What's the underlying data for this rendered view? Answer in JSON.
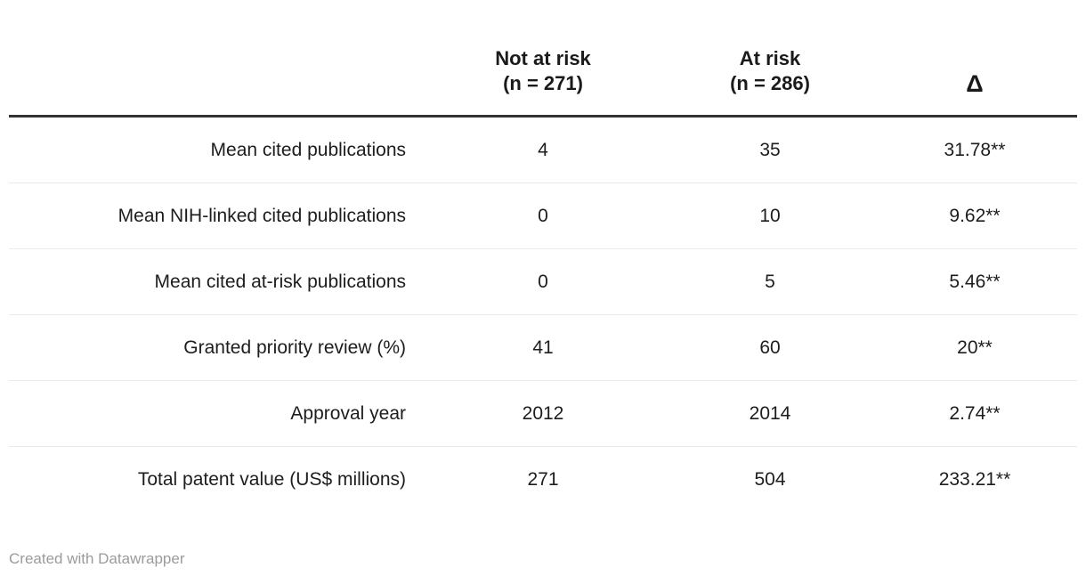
{
  "chart_data": {
    "type": "table",
    "columns": [
      {
        "label": "",
        "sublabel": ""
      },
      {
        "label": "Not at risk",
        "sublabel": "(n = 271)"
      },
      {
        "label": "At risk",
        "sublabel": "(n = 286)"
      },
      {
        "label": "Δ",
        "sublabel": ""
      }
    ],
    "rows": [
      [
        "Mean cited publications",
        "4",
        "35",
        "31.78**"
      ],
      [
        "Mean NIH-linked cited publications",
        "0",
        "10",
        "9.62**"
      ],
      [
        "Mean cited at-risk publications",
        "0",
        "5",
        "5.46**"
      ],
      [
        "Granted priority review (%)",
        "41",
        "60",
        "20**"
      ],
      [
        "Approval year",
        "2012",
        "2014",
        "2.74**"
      ],
      [
        "Total patent value (US$ millions)",
        "271",
        "504",
        "233.21**"
      ]
    ],
    "layout_hints": {
      "first_column_alignment": "right",
      "value_columns_alignment": "center",
      "header_rule": true,
      "row_separators": true
    }
  },
  "footer": {
    "credit": "Created with Datawrapper"
  },
  "colors": {
    "background": "#ffffff",
    "text": "#1d1d1d",
    "header_text": "#1a1a1a",
    "header_rule": "#333333",
    "row_separator": "#ebebeb",
    "footer_text": "#9b9b9b"
  }
}
